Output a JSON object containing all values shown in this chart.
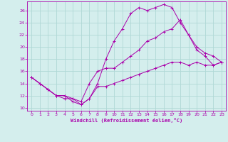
{
  "xlabel": "Windchill (Refroidissement éolien,°C)",
  "background_color": "#d4eeed",
  "grid_color": "#b0d8d6",
  "line_color": "#aa00aa",
  "xlim": [
    -0.5,
    23.5
  ],
  "ylim": [
    9.5,
    27.5
  ],
  "xticks": [
    0,
    1,
    2,
    3,
    4,
    5,
    6,
    7,
    8,
    9,
    10,
    11,
    12,
    13,
    14,
    15,
    16,
    17,
    18,
    19,
    20,
    21,
    22,
    23
  ],
  "yticks": [
    10,
    12,
    14,
    16,
    18,
    20,
    22,
    24,
    26
  ],
  "series1": [
    [
      0,
      15
    ],
    [
      1,
      14
    ],
    [
      2,
      13
    ],
    [
      3,
      12
    ],
    [
      4,
      12
    ],
    [
      5,
      11
    ],
    [
      6,
      10.5
    ],
    [
      7,
      11.5
    ],
    [
      8,
      14
    ],
    [
      9,
      18
    ],
    [
      10,
      21
    ],
    [
      11,
      23
    ],
    [
      12,
      25.5
    ],
    [
      13,
      26.5
    ],
    [
      14,
      26
    ],
    [
      15,
      26.5
    ],
    [
      16,
      27
    ],
    [
      17,
      26.5
    ],
    [
      18,
      24
    ],
    [
      19,
      22
    ],
    [
      20,
      19.5
    ],
    [
      21,
      18.5
    ],
    [
      22,
      17
    ],
    [
      23,
      17.5
    ]
  ],
  "series2": [
    [
      0,
      15
    ],
    [
      1,
      14
    ],
    [
      2,
      13
    ],
    [
      3,
      12
    ],
    [
      4,
      11.5
    ],
    [
      5,
      11.5
    ],
    [
      6,
      11
    ],
    [
      7,
      14
    ],
    [
      8,
      16
    ],
    [
      9,
      16.5
    ],
    [
      10,
      16.5
    ],
    [
      11,
      17.5
    ],
    [
      12,
      18.5
    ],
    [
      13,
      19.5
    ],
    [
      14,
      21
    ],
    [
      15,
      21.5
    ],
    [
      16,
      22.5
    ],
    [
      17,
      23
    ],
    [
      18,
      24.5
    ],
    [
      19,
      22
    ],
    [
      20,
      20
    ],
    [
      21,
      19
    ],
    [
      22,
      18.5
    ],
    [
      23,
      17.5
    ]
  ],
  "series3": [
    [
      0,
      15
    ],
    [
      1,
      14
    ],
    [
      2,
      13
    ],
    [
      3,
      12
    ],
    [
      4,
      12
    ],
    [
      5,
      11.5
    ],
    [
      6,
      10.5
    ],
    [
      7,
      11.5
    ],
    [
      8,
      13.5
    ],
    [
      9,
      13.5
    ],
    [
      10,
      14
    ],
    [
      11,
      14.5
    ],
    [
      12,
      15
    ],
    [
      13,
      15.5
    ],
    [
      14,
      16
    ],
    [
      15,
      16.5
    ],
    [
      16,
      17
    ],
    [
      17,
      17.5
    ],
    [
      18,
      17.5
    ],
    [
      19,
      17
    ],
    [
      20,
      17.5
    ],
    [
      21,
      17
    ],
    [
      22,
      17
    ],
    [
      23,
      17.5
    ]
  ]
}
